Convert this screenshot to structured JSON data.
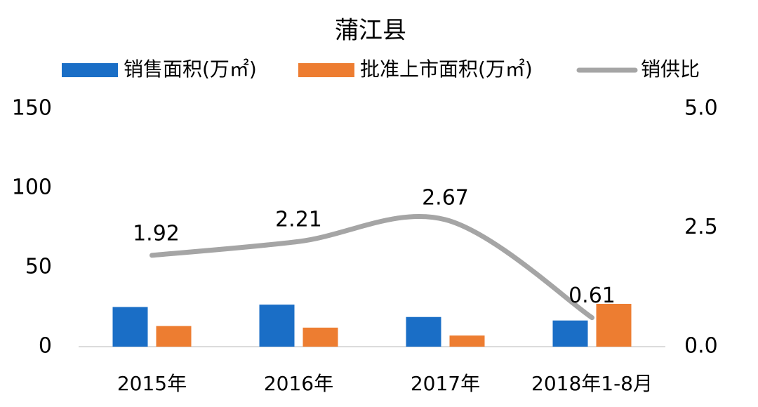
{
  "chart_data": {
    "type": "bar",
    "title": "蒲江县",
    "categories": [
      "2015年",
      "2016年",
      "2017年",
      "2018年1-8月"
    ],
    "series": [
      {
        "name": "销售面积(万㎡)",
        "color": "#1a6ec6",
        "values": [
          25,
          26.5,
          18.7,
          16.5
        ]
      },
      {
        "name": "批准上市面积(万㎡)",
        "color": "#ed7d31",
        "values": [
          13,
          12,
          7,
          27
        ]
      },
      {
        "name": "销供比",
        "type": "line",
        "axis": "y2",
        "color": "#a5a5a5",
        "values": [
          1.92,
          2.21,
          2.67,
          0.61
        ]
      }
    ],
    "ylim": [
      0,
      150
    ],
    "yticks": [
      0,
      50,
      100,
      150
    ],
    "y2lim": [
      0,
      5
    ],
    "y2ticks": [
      {
        "value": 0,
        "label": "0.0"
      },
      {
        "value": 2.5,
        "label": "2.5"
      },
      {
        "value": 5,
        "label": "5.0"
      }
    ],
    "legend": "top"
  }
}
